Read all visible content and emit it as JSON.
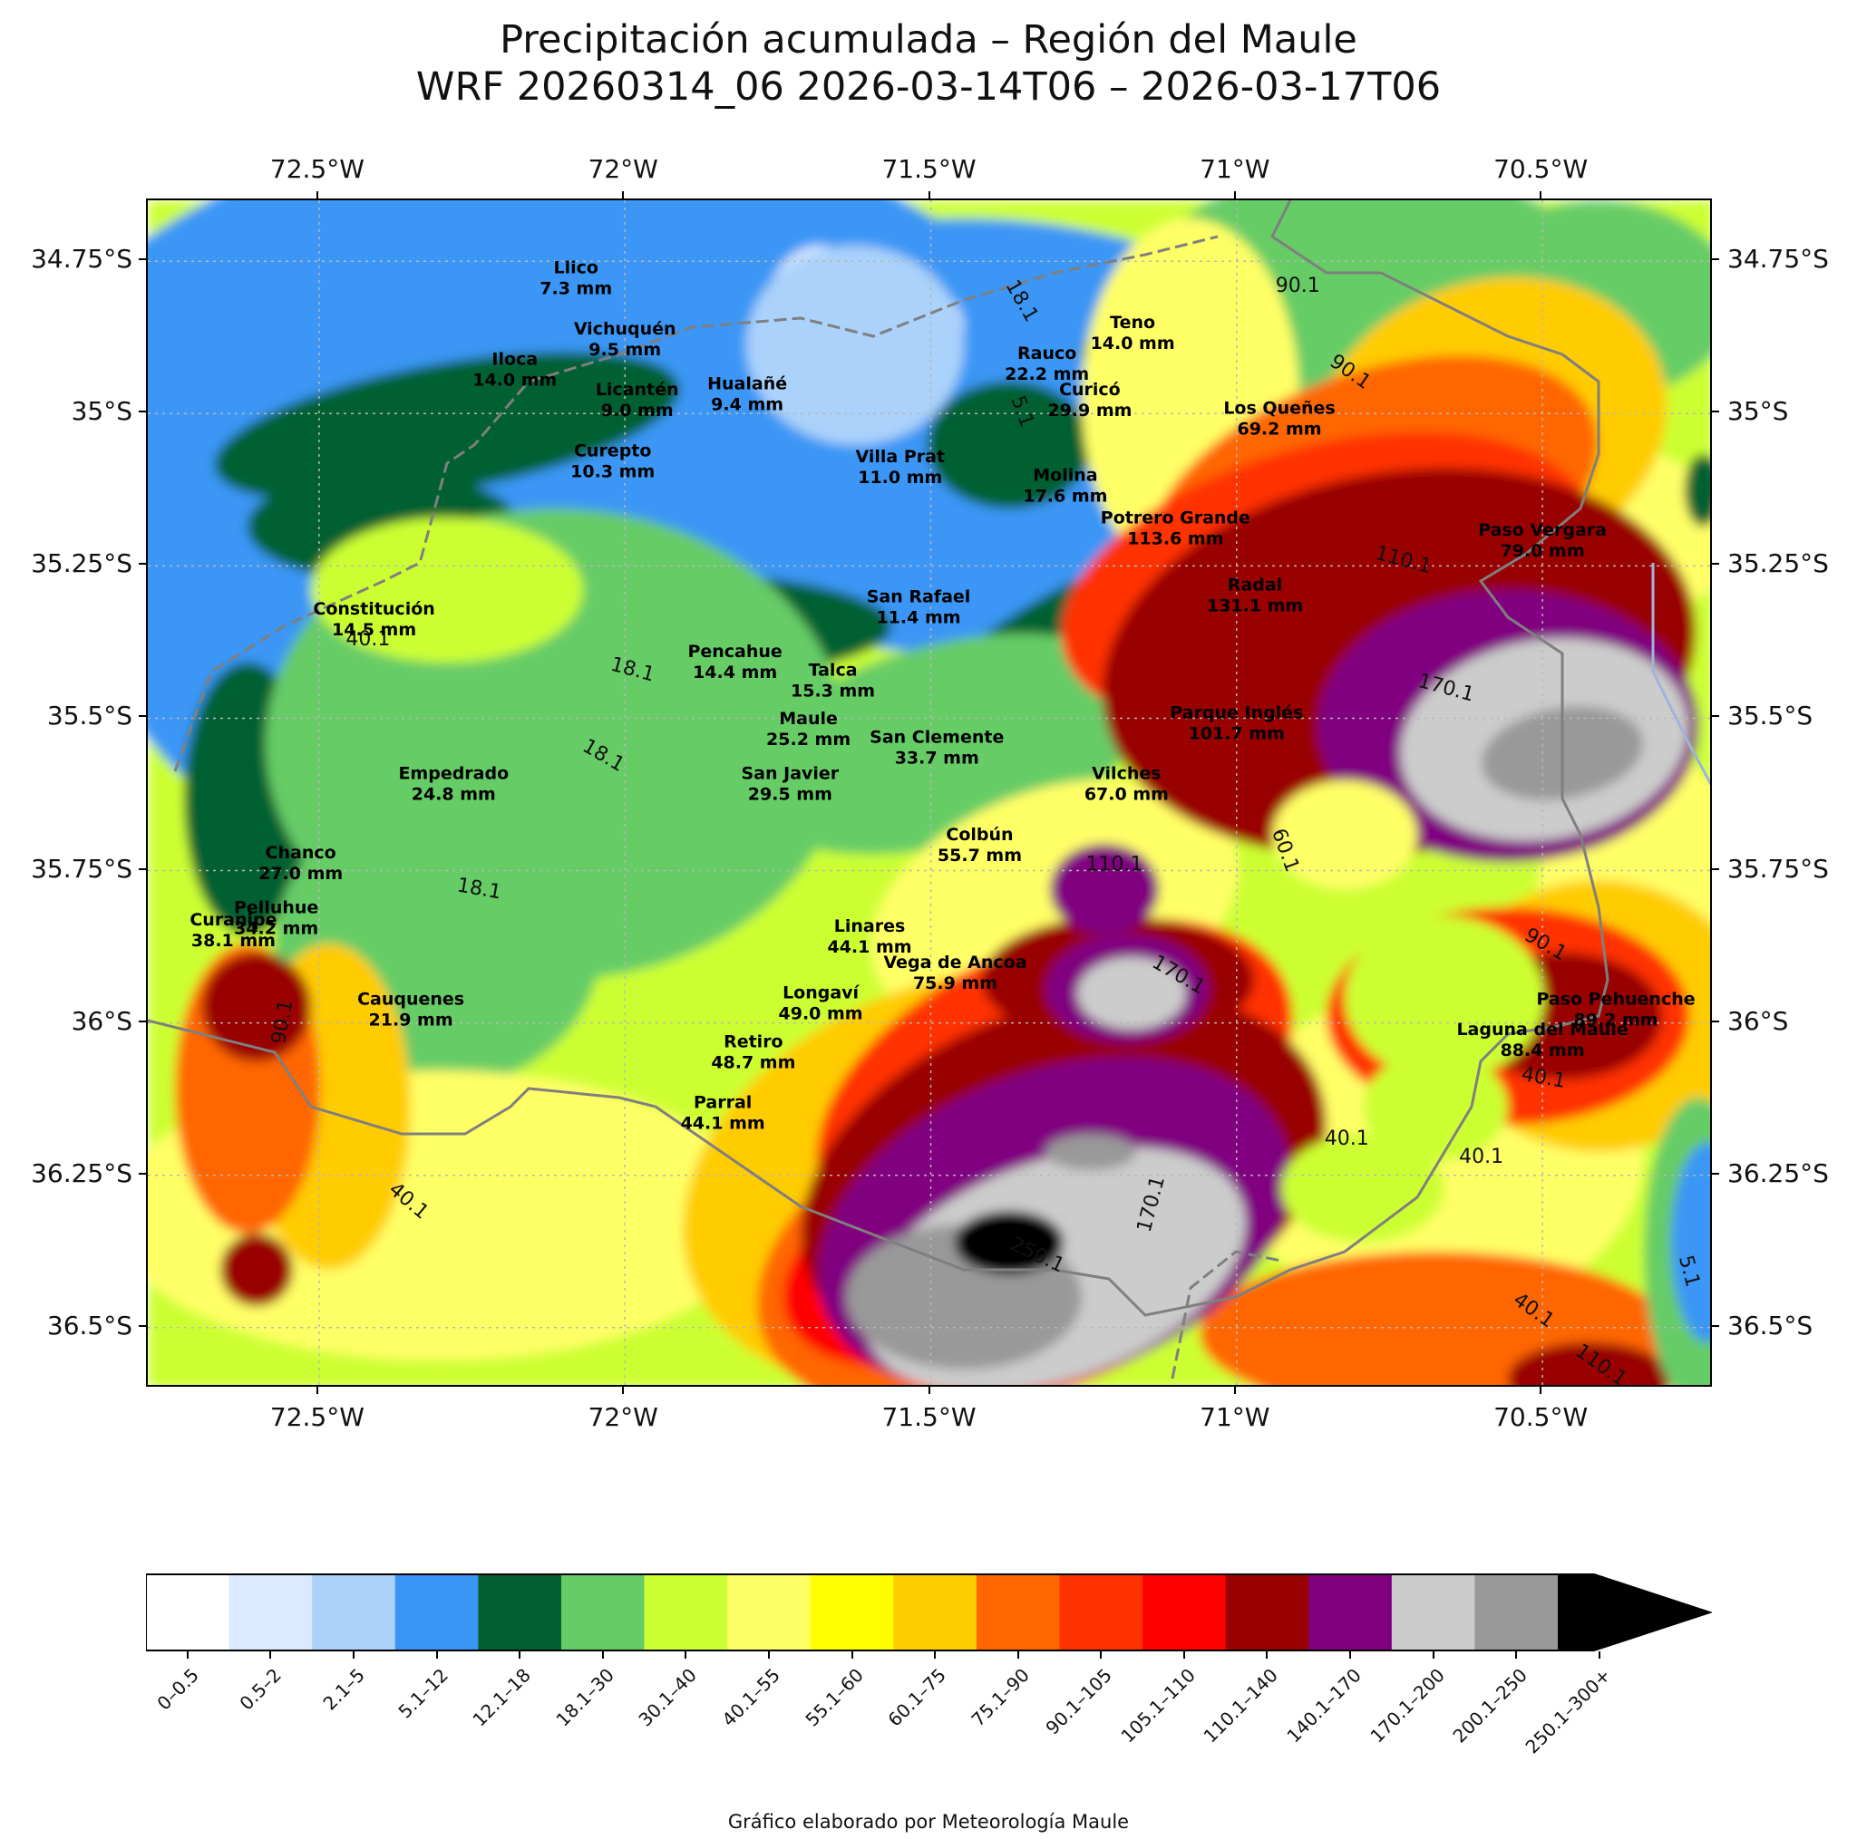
{
  "title": {
    "line1": "Precipitación acumulada – Región del Maule",
    "line2": "WRF 20260314_06  2026-03-14T06 – 2026-03-17T06"
  },
  "map": {
    "lon_range": [
      -72.78,
      -70.22
    ],
    "lat_range": [
      -36.6,
      -34.65
    ],
    "lon_ticks": [
      {
        "value": -72.5,
        "label": "72.5°W"
      },
      {
        "value": -72.0,
        "label": "72°W"
      },
      {
        "value": -71.5,
        "label": "71.5°W"
      },
      {
        "value": -71.0,
        "label": "71°W"
      },
      {
        "value": -70.5,
        "label": "70.5°W"
      }
    ],
    "lat_ticks": [
      {
        "value": -34.75,
        "label": "34.75°S"
      },
      {
        "value": -35.0,
        "label": "35°S"
      },
      {
        "value": -35.25,
        "label": "35.25°S"
      },
      {
        "value": -35.5,
        "label": "35.5°S"
      },
      {
        "value": -35.75,
        "label": "35.75°S"
      },
      {
        "value": -36.0,
        "label": "36°S"
      },
      {
        "value": -36.25,
        "label": "36.25°S"
      },
      {
        "value": -36.5,
        "label": "36.5°S"
      }
    ],
    "gridlines": true,
    "stations": [
      {
        "name": "Llico",
        "value": "7.3 mm",
        "lon": -72.08,
        "lat": -34.77
      },
      {
        "name": "Vichuquén",
        "value": "9.5 mm",
        "lon": -72.0,
        "lat": -34.87
      },
      {
        "name": "Iloca",
        "value": "14.0 mm",
        "lon": -72.18,
        "lat": -34.92
      },
      {
        "name": "Licantén",
        "value": "9.0 mm",
        "lon": -71.98,
        "lat": -34.97
      },
      {
        "name": "Hualañé",
        "value": "9.4 mm",
        "lon": -71.8,
        "lat": -34.96
      },
      {
        "name": "Teno",
        "value": "14.0 mm",
        "lon": -71.17,
        "lat": -34.86
      },
      {
        "name": "Rauco",
        "value": "22.2 mm",
        "lon": -71.31,
        "lat": -34.91
      },
      {
        "name": "Curicó",
        "value": "29.9 mm",
        "lon": -71.24,
        "lat": -34.97
      },
      {
        "name": "Curepto",
        "value": "10.3 mm",
        "lon": -72.02,
        "lat": -35.07
      },
      {
        "name": "Villa Prat",
        "value": "11.0 mm",
        "lon": -71.55,
        "lat": -35.08
      },
      {
        "name": "Molina",
        "value": "17.6 mm",
        "lon": -71.28,
        "lat": -35.11
      },
      {
        "name": "Los Queñes",
        "value": "69.2 mm",
        "lon": -70.93,
        "lat": -35.0
      },
      {
        "name": "Potrero Grande",
        "value": "113.6 mm",
        "lon": -71.1,
        "lat": -35.18
      },
      {
        "name": "Paso Vergara",
        "value": "79.0 mm",
        "lon": -70.5,
        "lat": -35.2
      },
      {
        "name": "Radal",
        "value": "131.1 mm",
        "lon": -70.97,
        "lat": -35.29
      },
      {
        "name": "Constitución",
        "value": "14.5 mm",
        "lon": -72.41,
        "lat": -35.33
      },
      {
        "name": "San Rafael",
        "value": "11.4 mm",
        "lon": -71.52,
        "lat": -35.31
      },
      {
        "name": "Pencahue",
        "value": "14.4 mm",
        "lon": -71.82,
        "lat": -35.4
      },
      {
        "name": "Talca",
        "value": "15.3 mm",
        "lon": -71.66,
        "lat": -35.43
      },
      {
        "name": "Parque Inglés",
        "value": "101.7 mm",
        "lon": -71.0,
        "lat": -35.5
      },
      {
        "name": "Maule",
        "value": "25.2 mm",
        "lon": -71.7,
        "lat": -35.51
      },
      {
        "name": "San Clemente",
        "value": "33.7 mm",
        "lon": -71.49,
        "lat": -35.54
      },
      {
        "name": "Vilches",
        "value": "67.0 mm",
        "lon": -71.18,
        "lat": -35.6
      },
      {
        "name": "Empedrado",
        "value": "24.8 mm",
        "lon": -72.28,
        "lat": -35.6
      },
      {
        "name": "San Javier",
        "value": "29.5 mm",
        "lon": -71.73,
        "lat": -35.6
      },
      {
        "name": "Chanco",
        "value": "27.0 mm",
        "lon": -72.53,
        "lat": -35.73
      },
      {
        "name": "Colbún",
        "value": "55.7 mm",
        "lon": -71.42,
        "lat": -35.7
      },
      {
        "name": "Pelluhue",
        "value": "34.2 mm",
        "lon": -72.57,
        "lat": -35.82
      },
      {
        "name": "Curanipe",
        "value": "38.1 mm",
        "lon": -72.64,
        "lat": -35.84
      },
      {
        "name": "Linares",
        "value": "44.1 mm",
        "lon": -71.6,
        "lat": -35.85
      },
      {
        "name": "Vega de Ancoa",
        "value": "75.9 mm",
        "lon": -71.46,
        "lat": -35.91
      },
      {
        "name": "Cauquenes",
        "value": "21.9 mm",
        "lon": -72.35,
        "lat": -35.97
      },
      {
        "name": "Longaví",
        "value": "49.0 mm",
        "lon": -71.68,
        "lat": -35.96
      },
      {
        "name": "Paso Pehuenche",
        "value": "89.2 mm",
        "lon": -70.38,
        "lat": -35.97
      },
      {
        "name": "Laguna del Maule",
        "value": "88.4 mm",
        "lon": -70.5,
        "lat": -36.02
      },
      {
        "name": "Retiro",
        "value": "48.7 mm",
        "lon": -71.79,
        "lat": -36.04
      },
      {
        "name": "Parral",
        "value": "44.1 mm",
        "lon": -71.84,
        "lat": -36.14
      }
    ],
    "contour_labels": [
      {
        "text": "90.1",
        "lon": -70.9,
        "lat": -34.8,
        "angle": 0
      },
      {
        "text": "90.1",
        "lon": -70.82,
        "lat": -34.94,
        "angle": 35
      },
      {
        "text": "18.1",
        "lon": -71.36,
        "lat": -34.82,
        "angle": 60
      },
      {
        "text": "5.1",
        "lon": -71.36,
        "lat": -35.0,
        "angle": 70
      },
      {
        "text": "110.1",
        "lon": -70.73,
        "lat": -35.25,
        "angle": 15
      },
      {
        "text": "170.1",
        "lon": -70.66,
        "lat": -35.46,
        "angle": 15
      },
      {
        "text": "40.1",
        "lon": -72.42,
        "lat": -35.38,
        "angle": 0
      },
      {
        "text": "18.1",
        "lon": -71.99,
        "lat": -35.43,
        "angle": 15
      },
      {
        "text": "18.1",
        "lon": -72.04,
        "lat": -35.57,
        "angle": 30
      },
      {
        "text": "60.1",
        "lon": -70.93,
        "lat": -35.72,
        "angle": 70
      },
      {
        "text": "110.1",
        "lon": -71.2,
        "lat": -35.75,
        "angle": 0
      },
      {
        "text": "18.1",
        "lon": -72.24,
        "lat": -35.79,
        "angle": 10
      },
      {
        "text": "90.1",
        "lon": -72.55,
        "lat": -36.0,
        "angle": -80
      },
      {
        "text": "170.1",
        "lon": -71.1,
        "lat": -35.93,
        "angle": 30
      },
      {
        "text": "90.1",
        "lon": -70.5,
        "lat": -35.88,
        "angle": 30
      },
      {
        "text": "40.1",
        "lon": -70.5,
        "lat": -36.1,
        "angle": 10
      },
      {
        "text": "40.1",
        "lon": -70.82,
        "lat": -36.2,
        "angle": 0
      },
      {
        "text": "40.1",
        "lon": -70.6,
        "lat": -36.23,
        "angle": 0
      },
      {
        "text": "170.1",
        "lon": -71.13,
        "lat": -36.3,
        "angle": -75
      },
      {
        "text": "40.1",
        "lon": -72.36,
        "lat": -36.3,
        "angle": 40
      },
      {
        "text": "250.1",
        "lon": -71.33,
        "lat": -36.39,
        "angle": 25
      },
      {
        "text": "40.1",
        "lon": -70.52,
        "lat": -36.48,
        "angle": 35
      },
      {
        "text": "5.1",
        "lon": -70.27,
        "lat": -36.41,
        "angle": 75
      },
      {
        "text": "110.1",
        "lon": -70.41,
        "lat": -36.57,
        "angle": 35
      }
    ]
  },
  "colorbar": {
    "colors": [
      "#ffffff",
      "#dbeafe",
      "#aad2fa",
      "#3a96f5",
      "#006030",
      "#66cc66",
      "#ccff33",
      "#ffff66",
      "#ffff00",
      "#ffcc00",
      "#ff6600",
      "#ff3300",
      "#ff0000",
      "#990000",
      "#800080",
      "#cccccc",
      "#999999",
      "#000000"
    ],
    "labels": [
      "0–0.5",
      "0.5–2",
      "2.1–5",
      "5.1–12",
      "12.1–18",
      "18.1–30",
      "30.1–40",
      "40.1–55",
      "55.1–60",
      "60.1–75",
      "75.1–90",
      "90.1–105",
      "105.1–110",
      "110.1–140",
      "140.1–170",
      "170.1–200",
      "200.1–250",
      "250.1–300+"
    ],
    "extend": "max"
  },
  "credit": "Gráfico elaborado por Meteorología Maule"
}
